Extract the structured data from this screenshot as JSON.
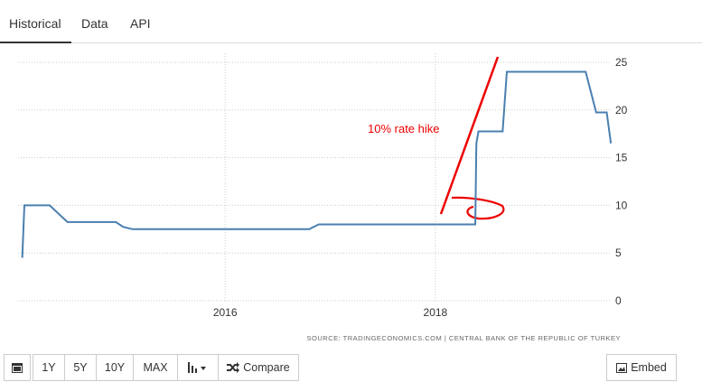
{
  "tabs": [
    "Historical",
    "Data",
    "API"
  ],
  "buttons": [
    "1Y",
    "5Y",
    "10Y",
    "MAX",
    "Compare",
    "Embed"
  ],
  "chart_data": {
    "type": "line",
    "x": [
      2014.07,
      2014.09,
      2014.33,
      2014.5,
      2014.96,
      2015.03,
      2015.12,
      2016.8,
      2016.89,
      2018.38,
      2018.39,
      2018.41,
      2018.64,
      2018.68,
      2019.43,
      2019.53,
      2019.63,
      2019.67
    ],
    "values": [
      4.5,
      10,
      10,
      8.25,
      8.25,
      7.75,
      7.5,
      7.5,
      8,
      8,
      16.5,
      17.75,
      17.75,
      24,
      24,
      19.75,
      19.75,
      16.5
    ],
    "color": "#4a7fb0",
    "xlim": [
      2014.03,
      2019.66
    ],
    "xticks": [
      2016,
      2018
    ],
    "ylim": [
      0,
      25
    ],
    "yticks": [
      0,
      5,
      10,
      15,
      20,
      25
    ],
    "grid": true,
    "annotation": "10% rate hike",
    "source": "SOURCE: TRADINGECONOMICS.COM | CENTRAL BANK OF THE REPUBLIC OF TURKEY"
  }
}
